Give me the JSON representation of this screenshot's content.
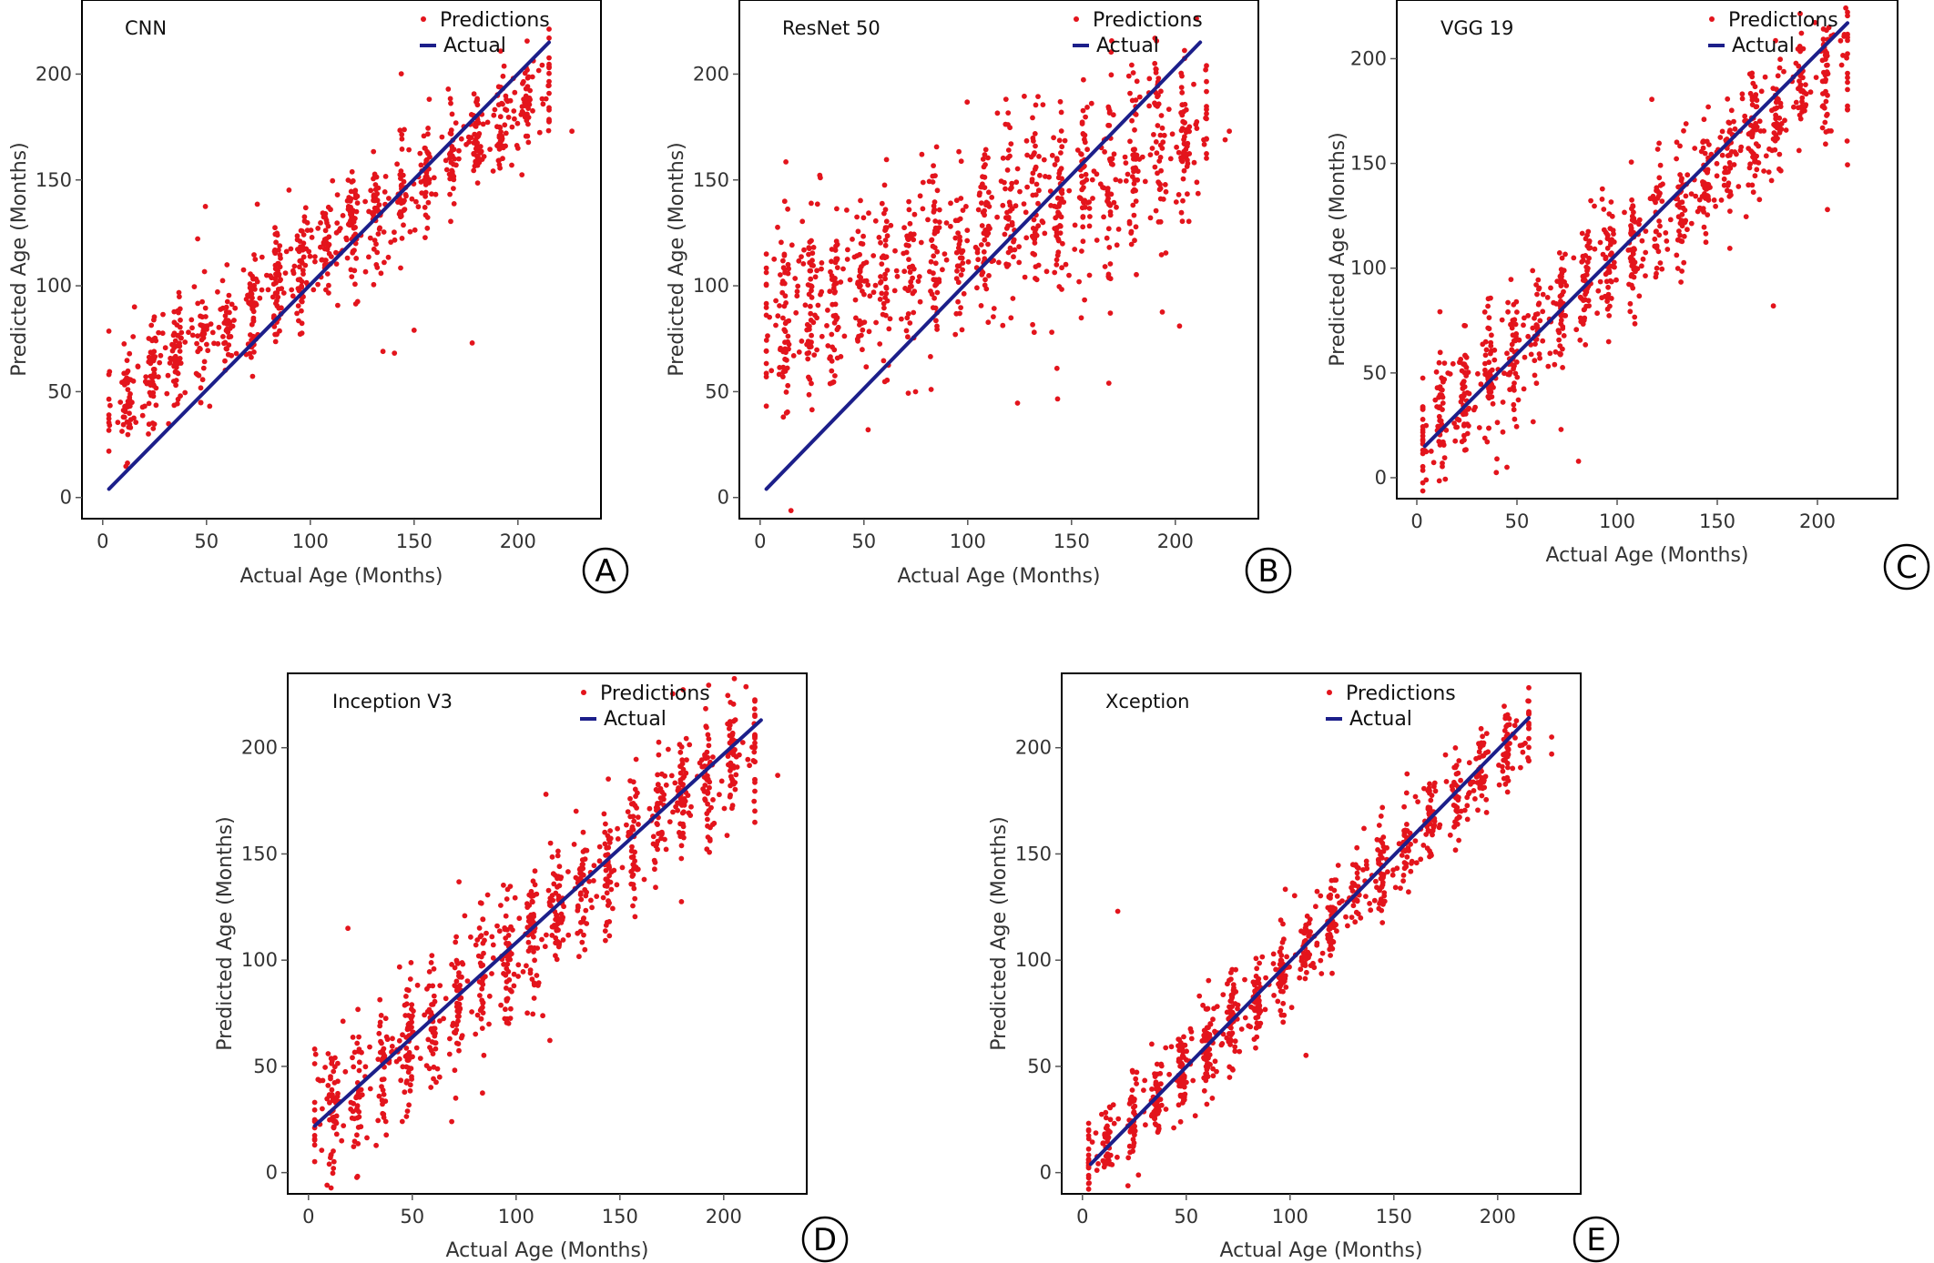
{
  "colors": {
    "predictions": "#e3141c",
    "actual": "#1c1f8a",
    "frame": "#000000",
    "axis": "#555555"
  },
  "chart_data": [
    {
      "panel": "A",
      "title": "CNN",
      "type": "scatter",
      "xlabel": "Actual Age (Months)",
      "ylabel": "Predicted Age (Months)",
      "xlim": [
        -10,
        240
      ],
      "ylim": [
        -10,
        235
      ],
      "xticks": [
        0,
        50,
        100,
        150,
        200
      ],
      "yticks": [
        0,
        50,
        100,
        150,
        200
      ],
      "legend": {
        "predictions": "Predictions",
        "actual": "Actual"
      },
      "actual_line": {
        "x": [
          3,
          215
        ],
        "y": [
          4,
          215
        ]
      },
      "scatter_model": {
        "seed": 11,
        "n": 900,
        "slope": 0.72,
        "intercept": 40,
        "spread": 13,
        "x_min": 3,
        "x_max": 215,
        "outliers": 25,
        "outlier_spread": 30
      },
      "points": [
        [
          22,
          30
        ],
        [
          135,
          69
        ],
        [
          150,
          79
        ],
        [
          178,
          73
        ],
        [
          197,
          157
        ],
        [
          200,
          165
        ],
        [
          226,
          173
        ]
      ]
    },
    {
      "panel": "B",
      "title": "ResNet 50",
      "type": "scatter",
      "xlabel": "Actual Age (Months)",
      "ylabel": "Predicted Age (Months)",
      "xlim": [
        -10,
        240
      ],
      "ylim": [
        -10,
        235
      ],
      "xticks": [
        0,
        50,
        100,
        150,
        200
      ],
      "yticks": [
        0,
        50,
        100,
        150,
        200
      ],
      "legend": {
        "predictions": "Predictions",
        "actual": "Actual"
      },
      "actual_line": {
        "x": [
          3,
          212
        ],
        "y": [
          4,
          215
        ]
      },
      "scatter_model": {
        "seed": 23,
        "n": 950,
        "slope": 0.45,
        "intercept": 78,
        "spread": 22,
        "x_min": 3,
        "x_max": 215,
        "outliers": 35,
        "outlier_spread": 45
      },
      "points": [
        [
          52,
          32
        ],
        [
          143,
          61
        ],
        [
          168,
          54
        ],
        [
          202,
          81
        ],
        [
          226,
          173
        ],
        [
          224,
          169
        ]
      ]
    },
    {
      "panel": "C",
      "title": "VGG 19",
      "type": "scatter",
      "xlabel": "Actual Age (Months)",
      "ylabel": "Predicted Age (Months)",
      "xlim": [
        -10,
        240
      ],
      "ylim": [
        -10,
        228
      ],
      "xticks": [
        0,
        50,
        100,
        150,
        200
      ],
      "yticks": [
        0,
        50,
        100,
        150,
        200
      ],
      "legend": {
        "predictions": "Predictions",
        "actual": "Actual"
      },
      "actual_line": {
        "x": [
          4,
          215
        ],
        "y": [
          15,
          217
        ]
      },
      "scatter_model": {
        "seed": 37,
        "n": 900,
        "slope": 0.86,
        "intercept": 19,
        "spread": 15,
        "x_min": 3,
        "x_max": 215,
        "outliers": 30,
        "outlier_spread": 35
      },
      "points": [
        [
          45,
          5
        ],
        [
          72,
          23
        ],
        [
          178,
          82
        ],
        [
          205,
          128
        ],
        [
          40,
          9
        ]
      ]
    },
    {
      "panel": "D",
      "title": "Inception V3",
      "type": "scatter",
      "xlabel": "Actual Age (Months)",
      "ylabel": "Predicted Age (Months)",
      "xlim": [
        -10,
        240
      ],
      "ylim": [
        -10,
        235
      ],
      "xticks": [
        0,
        50,
        100,
        150,
        200
      ],
      "yticks": [
        0,
        50,
        100,
        150,
        200
      ],
      "legend": {
        "predictions": "Predictions",
        "actual": "Actual"
      },
      "actual_line": {
        "x": [
          3,
          218
        ],
        "y": [
          22,
          213
        ]
      },
      "scatter_model": {
        "seed": 53,
        "n": 950,
        "slope": 0.86,
        "intercept": 20,
        "spread": 16,
        "x_min": 3,
        "x_max": 215,
        "outliers": 25,
        "outlier_spread": 30
      },
      "points": [
        [
          10,
          4
        ],
        [
          12,
          2
        ],
        [
          69,
          24
        ],
        [
          226,
          187
        ],
        [
          19,
          115
        ]
      ]
    },
    {
      "panel": "E",
      "title": "Xception",
      "type": "scatter",
      "xlabel": "Actual Age (Months)",
      "ylabel": "Predicted Age (Months)",
      "xlim": [
        -10,
        240
      ],
      "ylim": [
        -10,
        235
      ],
      "xticks": [
        0,
        50,
        100,
        150,
        200
      ],
      "yticks": [
        0,
        50,
        100,
        150,
        200
      ],
      "legend": {
        "predictions": "Predictions",
        "actual": "Actual"
      },
      "actual_line": {
        "x": [
          4,
          215
        ],
        "y": [
          4,
          214
        ]
      },
      "scatter_model": {
        "seed": 71,
        "n": 950,
        "slope": 0.97,
        "intercept": 2,
        "spread": 10,
        "x_min": 3,
        "x_max": 215,
        "outliers": 12,
        "outlier_spread": 18
      },
      "points": [
        [
          17,
          123
        ],
        [
          226,
          197
        ],
        [
          226,
          205
        ]
      ]
    }
  ]
}
